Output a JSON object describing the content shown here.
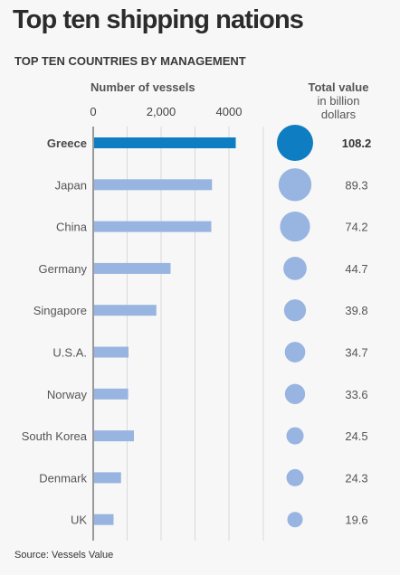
{
  "title": "Top ten shipping nations",
  "subtitle": "TOP TEN COUNTRIES BY MANAGEMENT",
  "source": "Source: Vessels Value",
  "colors": {
    "highlight": "#0e7dc2",
    "bar": "#98b4e0",
    "bubble": "#98b4e0",
    "axis": "#9a9a9a",
    "grid": "#d9d9d9"
  },
  "chart_data": {
    "type": "bar",
    "orientation": "horizontal",
    "xlabel": "Number of vessels",
    "xlim": [
      0,
      4800
    ],
    "xticks": [
      0,
      2000,
      4000
    ],
    "xtick_labels": [
      "0",
      "2,000",
      "4000"
    ],
    "categories": [
      "Greece",
      "Japan",
      "China",
      "Germany",
      "Singapore",
      "U.S.A.",
      "Norway",
      "South Korea",
      "Denmark",
      "UK"
    ],
    "values": [
      4200,
      3500,
      3480,
      2280,
      1860,
      1040,
      1030,
      1200,
      820,
      600
    ],
    "highlight": "Greece",
    "bubble_title": "Total value",
    "bubble_subtitle": [
      "in billion",
      "dollars"
    ],
    "bubble_values": [
      108.2,
      89.3,
      74.2,
      44.7,
      39.8,
      34.7,
      33.6,
      24.5,
      24.3,
      19.6
    ],
    "bubble_labels": [
      "108.2",
      "89.3",
      "74.2",
      "44.7",
      "39.8",
      "34.7",
      "33.6",
      "24.5",
      "24.3",
      "19.6"
    ],
    "grid": true
  }
}
